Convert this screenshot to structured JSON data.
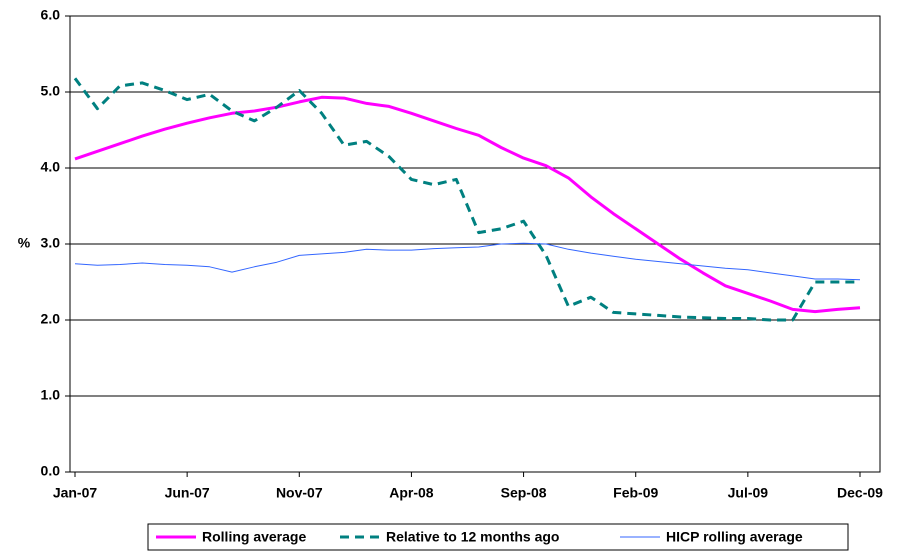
{
  "chart_data": {
    "type": "line",
    "y_label": "%",
    "categories": [
      "Jan-07",
      null,
      null,
      null,
      null,
      "Jun-07",
      null,
      null,
      null,
      null,
      "Nov-07",
      null,
      null,
      null,
      null,
      "Apr-08",
      null,
      null,
      null,
      null,
      "Sep-08",
      null,
      null,
      null,
      null,
      "Feb-09",
      null,
      null,
      null,
      null,
      "Jul-09",
      null,
      null,
      null,
      null,
      "Dec-09"
    ],
    "series": [
      {
        "name": "Rolling average",
        "color": "#ff00ff",
        "style": "solid",
        "width": 3,
        "values": [
          4.12,
          4.22,
          4.32,
          4.42,
          4.51,
          4.59,
          4.66,
          4.72,
          4.75,
          4.8,
          4.87,
          4.93,
          4.92,
          4.85,
          4.81,
          4.72,
          4.62,
          4.52,
          4.43,
          4.27,
          4.13,
          4.03,
          3.87,
          3.62,
          3.4,
          3.2,
          3.0,
          2.8,
          2.62,
          2.45,
          2.35,
          2.25,
          2.14,
          2.11,
          2.14,
          2.16
        ]
      },
      {
        "name": "Relative to 12 months ago",
        "color": "#008080",
        "style": "dashed",
        "width": 3,
        "values": [
          5.18,
          4.78,
          5.08,
          5.12,
          5.02,
          4.9,
          4.97,
          4.75,
          4.62,
          4.8,
          5.02,
          4.72,
          4.3,
          4.35,
          4.15,
          3.85,
          3.78,
          3.85,
          3.15,
          3.2,
          3.3,
          2.85,
          2.18,
          2.3,
          2.1,
          2.08,
          2.06,
          2.04,
          2.03,
          2.02,
          2.02,
          2.0,
          2.0,
          2.5,
          2.5,
          2.5
        ]
      },
      {
        "name": "HICP rolling average",
        "color": "#3366ff",
        "style": "solid",
        "width": 1,
        "values": [
          2.74,
          2.72,
          2.73,
          2.75,
          2.73,
          2.72,
          2.7,
          2.63,
          2.7,
          2.76,
          2.85,
          2.87,
          2.89,
          2.93,
          2.92,
          2.92,
          2.94,
          2.95,
          2.96,
          3.0,
          3.01,
          3.0,
          2.93,
          2.88,
          2.84,
          2.8,
          2.77,
          2.74,
          2.71,
          2.68,
          2.66,
          2.62,
          2.58,
          2.54,
          2.54,
          2.53
        ]
      }
    ],
    "ylim": [
      0,
      6
    ],
    "yticks": [
      {
        "value": 0,
        "label": "0.0"
      },
      {
        "value": 1,
        "label": "1.0"
      },
      {
        "value": 2,
        "label": "2.0"
      },
      {
        "value": 3,
        "label": "3.0"
      },
      {
        "value": 4,
        "label": "4.0"
      },
      {
        "value": 5,
        "label": "5.0"
      },
      {
        "value": 6,
        "label": "6.0"
      }
    ],
    "grid": true,
    "legend": "bottom"
  }
}
